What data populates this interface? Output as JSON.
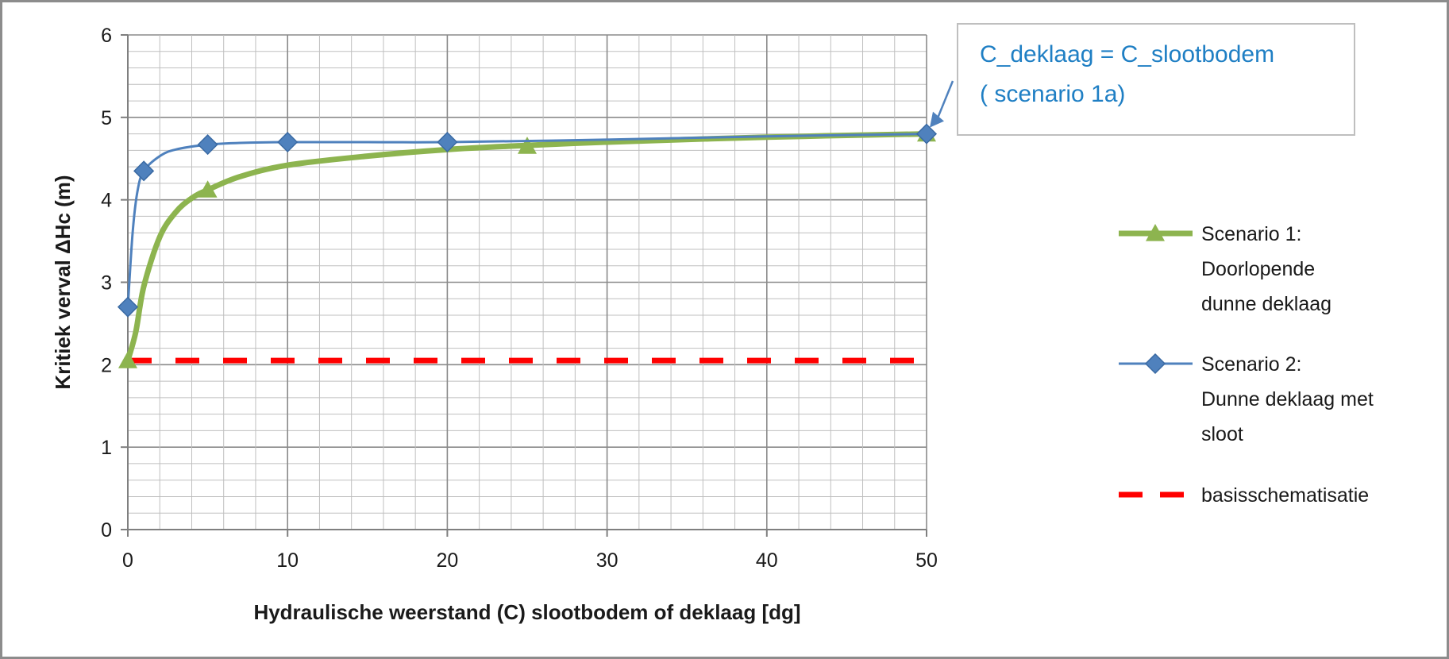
{
  "chart_data": {
    "type": "line",
    "xlabel": "Hydraulische weerstand (C) slootbodem of deklaag [dg]",
    "ylabel": "Kritiek verval ΔHc (m)",
    "xlim": [
      0,
      50
    ],
    "ylim": [
      0,
      6
    ],
    "x_ticks": [
      "0",
      "10",
      "20",
      "30",
      "40",
      "50"
    ],
    "y_ticks": [
      "0",
      "1",
      "2",
      "3",
      "4",
      "5",
      "6"
    ],
    "grid": true,
    "legend_position": "right",
    "series": [
      {
        "name": "Scenario 1: Doorlopende dunne deklaag",
        "legend_lines": [
          "Scenario 1:",
          "Doorlopende",
          "dunne deklaag"
        ],
        "color": "#8db44f",
        "marker": "triangle",
        "points": [
          [
            0,
            2.05
          ],
          [
            5,
            4.12
          ],
          [
            25,
            4.65
          ],
          [
            50,
            4.8
          ]
        ],
        "curve": [
          [
            0,
            2.05
          ],
          [
            0.5,
            2.4
          ],
          [
            1,
            2.95
          ],
          [
            2,
            3.55
          ],
          [
            3,
            3.85
          ],
          [
            4,
            4.02
          ],
          [
            5,
            4.12
          ],
          [
            7,
            4.28
          ],
          [
            10,
            4.42
          ],
          [
            15,
            4.53
          ],
          [
            20,
            4.61
          ],
          [
            25,
            4.66
          ],
          [
            30,
            4.7
          ],
          [
            40,
            4.76
          ],
          [
            50,
            4.8
          ]
        ]
      },
      {
        "name": "Scenario 2: Dunne deklaag met sloot",
        "legend_lines": [
          "Scenario 2:",
          "Dunne deklaag met",
          "sloot"
        ],
        "color": "#4f81bd",
        "marker": "diamond",
        "points": [
          [
            0,
            2.7
          ],
          [
            1,
            4.35
          ],
          [
            5,
            4.67
          ],
          [
            10,
            4.7
          ],
          [
            20,
            4.7
          ],
          [
            50,
            4.8
          ]
        ],
        "curve": [
          [
            0,
            2.7
          ],
          [
            0.3,
            3.6
          ],
          [
            0.6,
            4.1
          ],
          [
            1,
            4.35
          ],
          [
            2,
            4.53
          ],
          [
            3,
            4.61
          ],
          [
            5,
            4.67
          ],
          [
            7,
            4.69
          ],
          [
            10,
            4.7
          ],
          [
            15,
            4.7
          ],
          [
            20,
            4.7
          ],
          [
            30,
            4.73
          ],
          [
            40,
            4.77
          ],
          [
            50,
            4.8
          ]
        ]
      },
      {
        "name": "basisschematisatie",
        "legend_lines": [
          "basisschematisatie"
        ],
        "color": "#ff0000",
        "marker": "none",
        "dashed": true,
        "curve": [
          [
            0,
            2.05
          ],
          [
            50,
            2.05
          ]
        ]
      }
    ],
    "annotations": [
      {
        "lines": [
          "C_deklaag = C_slootbodem",
          "( scenario 1a)"
        ],
        "color": "#1f7fc4",
        "points_to": [
          50,
          4.8
        ]
      }
    ]
  }
}
